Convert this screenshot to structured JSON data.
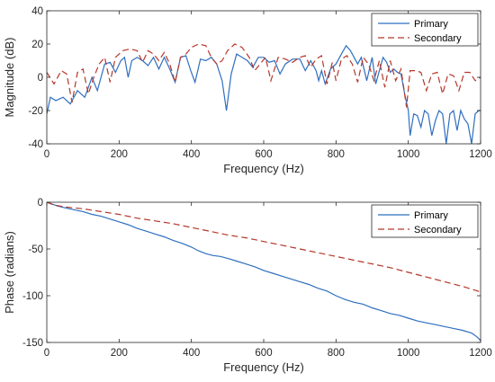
{
  "chart_data": [
    {
      "type": "line",
      "xlabel": "Frequency (Hz)",
      "ylabel": "Magnitude (dB)",
      "xlim": [
        0,
        1200
      ],
      "ylim": [
        -40,
        40
      ],
      "xticks": [
        "0",
        "200",
        "400",
        "600",
        "800",
        "1000",
        "1200"
      ],
      "yticks": [
        "40",
        "20",
        "0",
        "-20",
        "-40"
      ],
      "legend_position": "top-right",
      "grid": false,
      "series": [
        {
          "name": "Primary",
          "color": "#2f6fbf",
          "style": "solid",
          "x": [
            0,
            10,
            25,
            45,
            65,
            85,
            105,
            125,
            140,
            160,
            175,
            190,
            205,
            215,
            225,
            235,
            250,
            265,
            280,
            295,
            310,
            325,
            340,
            355,
            370,
            385,
            398,
            410,
            425,
            440,
            455,
            470,
            485,
            497,
            510,
            525,
            540,
            555,
            570,
            585,
            600,
            615,
            630,
            645,
            660,
            680,
            700,
            715,
            730,
            745,
            752,
            760,
            770,
            785,
            800,
            815,
            828,
            840,
            850,
            860,
            870,
            885,
            900,
            910,
            920,
            930,
            940,
            950,
            960,
            970,
            980,
            990,
            1000,
            1005,
            1015,
            1025,
            1035,
            1045,
            1055,
            1065,
            1075,
            1085,
            1095,
            1105,
            1115,
            1125,
            1135,
            1145,
            1155,
            1165,
            1175,
            1185,
            1195,
            1200
          ],
          "y": [
            -22,
            -12,
            -14,
            -12,
            -16,
            -8,
            -12,
            0,
            -8,
            8,
            9,
            3,
            10,
            12,
            0,
            10,
            12,
            10,
            7,
            12,
            5,
            12,
            5,
            -3,
            12,
            13,
            4,
            -3,
            11,
            10,
            12,
            8,
            -2,
            -20,
            2,
            14,
            12,
            10,
            6,
            12,
            12,
            9,
            10,
            2,
            8,
            11,
            11,
            4,
            10,
            4,
            -2,
            4,
            -4,
            5,
            8,
            14,
            19,
            16,
            12,
            8,
            12,
            -2,
            12,
            -4,
            4,
            12,
            9,
            3,
            5,
            3,
            2,
            -10,
            -20,
            -35,
            -22,
            -23,
            -30,
            -20,
            -22,
            -35,
            -26,
            -20,
            -22,
            -40,
            -22,
            -20,
            -32,
            -20,
            -25,
            -28,
            -40,
            -22,
            -20,
            -20
          ]
        },
        {
          "name": "Secondary",
          "color": "#b5372a",
          "style": "dashed",
          "x": [
            0,
            20,
            40,
            55,
            70,
            85,
            100,
            115,
            130,
            145,
            160,
            175,
            190,
            210,
            230,
            250,
            265,
            280,
            295,
            310,
            325,
            340,
            355,
            370,
            385,
            400,
            420,
            440,
            455,
            470,
            485,
            500,
            520,
            540,
            560,
            575,
            590,
            605,
            620,
            640,
            660,
            680,
            700,
            715,
            730,
            745,
            760,
            775,
            790,
            800,
            815,
            830,
            845,
            860,
            875,
            890,
            905,
            920,
            935,
            950,
            965,
            980,
            995,
            1005,
            1020,
            1035,
            1050,
            1065,
            1080,
            1095,
            1110,
            1125,
            1140,
            1155,
            1170,
            1185,
            1200
          ],
          "y": [
            3,
            -4,
            4,
            2,
            -15,
            3,
            5,
            -10,
            0,
            8,
            12,
            -3,
            12,
            16,
            17,
            16,
            9,
            16,
            14,
            10,
            15,
            8,
            -3,
            12,
            14,
            18,
            20,
            19,
            12,
            8,
            10,
            16,
            20,
            18,
            12,
            4,
            8,
            12,
            -2,
            12,
            11,
            9,
            12,
            13,
            6,
            11,
            13,
            -4,
            9,
            -2,
            11,
            13,
            8,
            -3,
            12,
            8,
            -2,
            10,
            -6,
            10,
            -2,
            5,
            -18,
            4,
            4,
            3,
            -8,
            2,
            3,
            -10,
            2,
            1,
            -8,
            3,
            3,
            -2,
            0
          ]
        }
      ]
    },
    {
      "type": "line",
      "xlabel": "Frequency (Hz)",
      "ylabel": "Phase (radians)",
      "xlim": [
        0,
        1200
      ],
      "ylim": [
        -150,
        0
      ],
      "xticks": [
        "0",
        "200",
        "400",
        "600",
        "800",
        "1000",
        "1200"
      ],
      "yticks": [
        "0",
        "-50",
        "-100",
        "-150"
      ],
      "legend_position": "top-right",
      "grid": false,
      "series": [
        {
          "name": "Primary",
          "color": "#2f6fbf",
          "style": "solid",
          "x": [
            0,
            15,
            30,
            50,
            75,
            100,
            125,
            150,
            175,
            200,
            225,
            250,
            275,
            300,
            325,
            350,
            375,
            400,
            420,
            440,
            460,
            480,
            500,
            525,
            550,
            575,
            600,
            625,
            650,
            675,
            700,
            725,
            750,
            775,
            800,
            825,
            850,
            875,
            900,
            925,
            950,
            975,
            1000,
            1025,
            1050,
            1075,
            1100,
            1125,
            1150,
            1175,
            1190,
            1200
          ],
          "y": [
            0,
            -2,
            -4,
            -6,
            -8,
            -10,
            -13,
            -15,
            -18,
            -21,
            -24,
            -28,
            -31,
            -34,
            -37,
            -41,
            -44,
            -48,
            -52,
            -55,
            -57,
            -58,
            -60,
            -63,
            -66,
            -69,
            -73,
            -76,
            -79,
            -82,
            -85,
            -88,
            -92,
            -95,
            -100,
            -104,
            -107,
            -109,
            -113,
            -116,
            -119,
            -121,
            -124,
            -127,
            -129,
            -131,
            -133,
            -135,
            -137,
            -140,
            -144,
            -148
          ]
        },
        {
          "name": "Secondary",
          "color": "#b5372a",
          "style": "dashed",
          "x": [
            0,
            20,
            50,
            100,
            150,
            200,
            250,
            300,
            350,
            400,
            450,
            500,
            550,
            600,
            650,
            700,
            750,
            800,
            850,
            900,
            950,
            1000,
            1050,
            1100,
            1150,
            1200
          ],
          "y": [
            0,
            -3,
            -5,
            -7,
            -10,
            -13,
            -17,
            -20,
            -23,
            -27,
            -31,
            -35,
            -38,
            -42,
            -46,
            -50,
            -54,
            -58,
            -62,
            -66,
            -70,
            -75,
            -80,
            -85,
            -90,
            -96
          ]
        }
      ]
    }
  ]
}
